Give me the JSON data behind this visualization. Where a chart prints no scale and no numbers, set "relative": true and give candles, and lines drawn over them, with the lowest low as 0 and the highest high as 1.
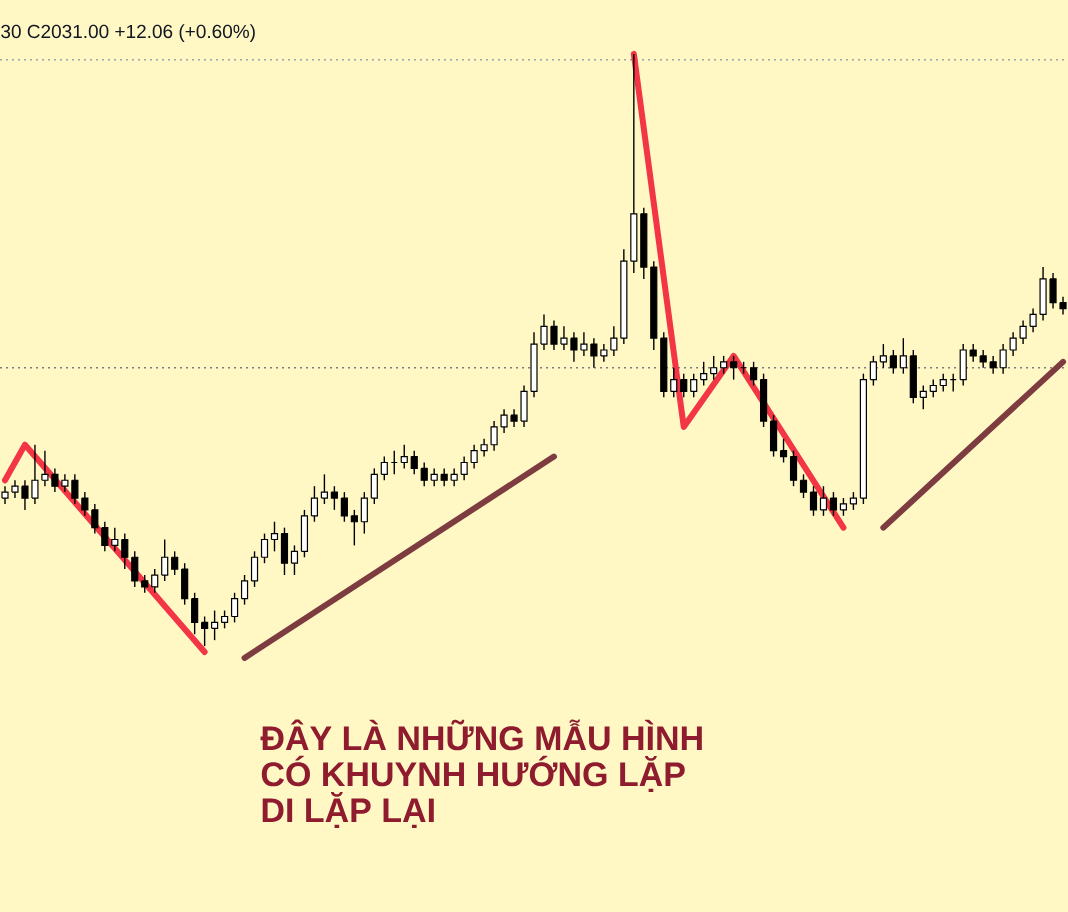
{
  "chart_data": {
    "type": "candlestick",
    "relative": true,
    "subtitle": "30 C2031.00 +12.06 (+0.60%)",
    "annotations": [
      "ĐÂY LÀ NHỮNG MẪU HÌNH",
      "CÓ KHUYNH HƯỚNG LẶP",
      "DI LẶP LẠI"
    ],
    "categories": [
      null,
      null,
      null,
      null,
      null,
      null,
      null,
      null,
      null,
      null,
      null,
      null,
      null,
      null,
      null,
      null,
      null,
      null,
      null,
      null,
      null,
      null,
      null,
      null,
      null,
      null,
      null,
      null,
      null,
      null,
      null,
      null,
      null,
      null,
      null,
      null,
      null,
      null,
      null,
      null,
      null,
      null,
      null,
      null,
      null,
      null,
      null,
      null,
      null,
      null,
      null,
      null,
      null,
      null,
      null,
      null,
      null,
      null,
      null,
      null,
      null,
      null,
      null,
      null,
      null,
      null,
      null,
      null,
      null,
      null,
      null,
      null,
      null,
      null,
      null,
      null,
      null,
      null,
      null,
      null,
      null,
      null,
      null,
      null,
      null,
      null,
      null,
      null,
      null,
      null,
      null,
      null,
      null,
      null,
      null,
      null,
      null,
      null,
      null,
      null,
      null,
      null,
      null,
      null,
      null,
      null,
      null
    ],
    "ohlc": [
      [
        0.25,
        0.27,
        0.24,
        0.26
      ],
      [
        0.26,
        0.28,
        0.25,
        0.27
      ],
      [
        0.27,
        0.28,
        0.23,
        0.25
      ],
      [
        0.25,
        0.34,
        0.24,
        0.28
      ],
      [
        0.28,
        0.33,
        0.27,
        0.29
      ],
      [
        0.29,
        0.3,
        0.26,
        0.27
      ],
      [
        0.27,
        0.29,
        0.26,
        0.28
      ],
      [
        0.28,
        0.29,
        0.24,
        0.25
      ],
      [
        0.25,
        0.26,
        0.22,
        0.23
      ],
      [
        0.23,
        0.24,
        0.19,
        0.2
      ],
      [
        0.2,
        0.21,
        0.16,
        0.17
      ],
      [
        0.17,
        0.2,
        0.16,
        0.18
      ],
      [
        0.18,
        0.19,
        0.13,
        0.15
      ],
      [
        0.15,
        0.16,
        0.1,
        0.11
      ],
      [
        0.11,
        0.12,
        0.09,
        0.1
      ],
      [
        0.1,
        0.13,
        0.09,
        0.12
      ],
      [
        0.12,
        0.18,
        0.11,
        0.15
      ],
      [
        0.15,
        0.16,
        0.12,
        0.13
      ],
      [
        0.13,
        0.14,
        0.07,
        0.08
      ],
      [
        0.08,
        0.09,
        0.02,
        0.04
      ],
      [
        0.04,
        0.05,
        0.0,
        0.03
      ],
      [
        0.03,
        0.06,
        0.01,
        0.04
      ],
      [
        0.04,
        0.06,
        0.03,
        0.05
      ],
      [
        0.05,
        0.09,
        0.04,
        0.08
      ],
      [
        0.08,
        0.12,
        0.07,
        0.11
      ],
      [
        0.11,
        0.16,
        0.1,
        0.15
      ],
      [
        0.15,
        0.19,
        0.14,
        0.18
      ],
      [
        0.18,
        0.21,
        0.16,
        0.19
      ],
      [
        0.19,
        0.2,
        0.12,
        0.14
      ],
      [
        0.14,
        0.17,
        0.12,
        0.16
      ],
      [
        0.16,
        0.23,
        0.15,
        0.22
      ],
      [
        0.22,
        0.27,
        0.21,
        0.25
      ],
      [
        0.25,
        0.29,
        0.24,
        0.26
      ],
      [
        0.26,
        0.27,
        0.23,
        0.25
      ],
      [
        0.25,
        0.26,
        0.21,
        0.22
      ],
      [
        0.22,
        0.23,
        0.17,
        0.21
      ],
      [
        0.21,
        0.26,
        0.19,
        0.25
      ],
      [
        0.25,
        0.3,
        0.24,
        0.29
      ],
      [
        0.29,
        0.32,
        0.28,
        0.31
      ],
      [
        0.31,
        0.33,
        0.29,
        0.31
      ],
      [
        0.31,
        0.34,
        0.3,
        0.32
      ],
      [
        0.32,
        0.33,
        0.29,
        0.3
      ],
      [
        0.3,
        0.31,
        0.27,
        0.28
      ],
      [
        0.28,
        0.3,
        0.27,
        0.29
      ],
      [
        0.29,
        0.3,
        0.27,
        0.28
      ],
      [
        0.28,
        0.3,
        0.27,
        0.29
      ],
      [
        0.29,
        0.32,
        0.28,
        0.31
      ],
      [
        0.31,
        0.34,
        0.3,
        0.33
      ],
      [
        0.33,
        0.35,
        0.32,
        0.34
      ],
      [
        0.34,
        0.38,
        0.33,
        0.37
      ],
      [
        0.37,
        0.4,
        0.36,
        0.39
      ],
      [
        0.39,
        0.4,
        0.37,
        0.38
      ],
      [
        0.38,
        0.44,
        0.37,
        0.43
      ],
      [
        0.43,
        0.53,
        0.42,
        0.51
      ],
      [
        0.51,
        0.56,
        0.5,
        0.54
      ],
      [
        0.54,
        0.55,
        0.5,
        0.51
      ],
      [
        0.51,
        0.54,
        0.5,
        0.52
      ],
      [
        0.52,
        0.53,
        0.48,
        0.5
      ],
      [
        0.5,
        0.53,
        0.49,
        0.51
      ],
      [
        0.51,
        0.52,
        0.47,
        0.49
      ],
      [
        0.49,
        0.51,
        0.48,
        0.5
      ],
      [
        0.5,
        0.54,
        0.49,
        0.52
      ],
      [
        0.52,
        0.67,
        0.51,
        0.65
      ],
      [
        0.65,
        1.0,
        0.63,
        0.73
      ],
      [
        0.73,
        0.74,
        0.62,
        0.64
      ],
      [
        0.64,
        0.65,
        0.5,
        0.52
      ],
      [
        0.52,
        0.53,
        0.42,
        0.43
      ],
      [
        0.43,
        0.47,
        0.42,
        0.45
      ],
      [
        0.45,
        0.46,
        0.42,
        0.43
      ],
      [
        0.43,
        0.46,
        0.42,
        0.45
      ],
      [
        0.45,
        0.48,
        0.44,
        0.46
      ],
      [
        0.46,
        0.49,
        0.45,
        0.47
      ],
      [
        0.47,
        0.49,
        0.46,
        0.48
      ],
      [
        0.48,
        0.49,
        0.45,
        0.47
      ],
      [
        0.47,
        0.48,
        0.46,
        0.47
      ],
      [
        0.47,
        0.48,
        0.44,
        0.45
      ],
      [
        0.45,
        0.46,
        0.37,
        0.38
      ],
      [
        0.38,
        0.39,
        0.32,
        0.33
      ],
      [
        0.33,
        0.35,
        0.31,
        0.32
      ],
      [
        0.32,
        0.33,
        0.27,
        0.28
      ],
      [
        0.28,
        0.29,
        0.25,
        0.26
      ],
      [
        0.26,
        0.27,
        0.22,
        0.23
      ],
      [
        0.23,
        0.27,
        0.22,
        0.25
      ],
      [
        0.25,
        0.26,
        0.22,
        0.23
      ],
      [
        0.23,
        0.25,
        0.22,
        0.24
      ],
      [
        0.24,
        0.26,
        0.23,
        0.25
      ],
      [
        0.25,
        0.46,
        0.24,
        0.45
      ],
      [
        0.45,
        0.49,
        0.44,
        0.48
      ],
      [
        0.48,
        0.51,
        0.47,
        0.49
      ],
      [
        0.49,
        0.5,
        0.46,
        0.47
      ],
      [
        0.47,
        0.52,
        0.46,
        0.49
      ],
      [
        0.49,
        0.5,
        0.41,
        0.42
      ],
      [
        0.42,
        0.44,
        0.4,
        0.43
      ],
      [
        0.43,
        0.45,
        0.42,
        0.44
      ],
      [
        0.44,
        0.46,
        0.43,
        0.45
      ],
      [
        0.45,
        0.46,
        0.43,
        0.45
      ],
      [
        0.45,
        0.51,
        0.44,
        0.5
      ],
      [
        0.5,
        0.51,
        0.48,
        0.49
      ],
      [
        0.49,
        0.5,
        0.47,
        0.48
      ],
      [
        0.48,
        0.49,
        0.46,
        0.47
      ],
      [
        0.47,
        0.51,
        0.46,
        0.5
      ],
      [
        0.5,
        0.53,
        0.49,
        0.52
      ],
      [
        0.52,
        0.55,
        0.51,
        0.54
      ],
      [
        0.54,
        0.57,
        0.53,
        0.56
      ],
      [
        0.56,
        0.64,
        0.55,
        0.62
      ],
      [
        0.62,
        0.63,
        0.57,
        0.58
      ],
      [
        0.58,
        0.59,
        0.56,
        0.57
      ]
    ],
    "colors": [
      "#ffffff",
      "#ffffff",
      "#000000",
      "#ffffff",
      "#ffffff",
      "#000000",
      "#ffffff",
      "#000000",
      "#000000",
      "#000000",
      "#000000",
      "#ffffff",
      "#000000",
      "#000000",
      "#000000",
      "#ffffff",
      "#ffffff",
      "#000000",
      "#000000",
      "#000000",
      "#000000",
      "#ffffff",
      "#ffffff",
      "#ffffff",
      "#ffffff",
      "#ffffff",
      "#ffffff",
      "#ffffff",
      "#000000",
      "#ffffff",
      "#ffffff",
      "#ffffff",
      "#ffffff",
      "#000000",
      "#000000",
      "#000000",
      "#ffffff",
      "#ffffff",
      "#ffffff",
      "#000000",
      "#ffffff",
      "#000000",
      "#000000",
      "#ffffff",
      "#000000",
      "#ffffff",
      "#ffffff",
      "#ffffff",
      "#ffffff",
      "#ffffff",
      "#ffffff",
      "#000000",
      "#ffffff",
      "#ffffff",
      "#ffffff",
      "#000000",
      "#ffffff",
      "#000000",
      "#ffffff",
      "#000000",
      "#ffffff",
      "#ffffff",
      "#ffffff",
      "#ffffff",
      "#000000",
      "#000000",
      "#000000",
      "#ffffff",
      "#000000",
      "#ffffff",
      "#ffffff",
      "#ffffff",
      "#ffffff",
      "#000000",
      "#000000",
      "#000000",
      "#000000",
      "#000000",
      "#000000",
      "#000000",
      "#000000",
      "#000000",
      "#ffffff",
      "#000000",
      "#ffffff",
      "#ffffff",
      "#ffffff",
      "#ffffff",
      "#ffffff",
      "#000000",
      "#ffffff",
      "#000000",
      "#ffffff",
      "#ffffff",
      "#ffffff",
      "#000000",
      "#ffffff",
      "#000000",
      "#000000",
      "#000000",
      "#ffffff",
      "#ffffff",
      "#ffffff",
      "#ffffff",
      "#ffffff",
      "#000000",
      "#000000"
    ],
    "series": [
      {
        "type": "line",
        "color": "#f23645",
        "values": [
          0.28,
          null,
          0.34,
          null,
          null,
          null,
          null,
          null,
          null,
          null,
          null,
          null,
          null,
          null,
          null,
          null,
          null,
          null,
          null,
          null,
          -0.01,
          null,
          null,
          null,
          null,
          null,
          null,
          null,
          null,
          null,
          null,
          null,
          null,
          null,
          null,
          null,
          null,
          null,
          null,
          null,
          null,
          null,
          null,
          null,
          null,
          null,
          null,
          null,
          null,
          null,
          null,
          null,
          null,
          null,
          null,
          null,
          null,
          null,
          null,
          null,
          null,
          null,
          null,
          null,
          null,
          null,
          null,
          null,
          null,
          null,
          null,
          null,
          null,
          null,
          null,
          null,
          null,
          null,
          null,
          null,
          null,
          null,
          null,
          null,
          null,
          null,
          null,
          null,
          null,
          null,
          null,
          null,
          null,
          null,
          null,
          null,
          null,
          null,
          null,
          null,
          null,
          null,
          null,
          null,
          null,
          null,
          null
        ]
      },
      {
        "type": "line",
        "color": "#f23645",
        "values": [
          null,
          null,
          null,
          null,
          null,
          null,
          null,
          null,
          null,
          null,
          null,
          null,
          null,
          null,
          null,
          null,
          null,
          null,
          null,
          null,
          null,
          null,
          null,
          null,
          null,
          null,
          null,
          null,
          null,
          null,
          null,
          null,
          null,
          null,
          null,
          null,
          null,
          null,
          null,
          null,
          null,
          null,
          null,
          null,
          null,
          null,
          null,
          null,
          null,
          null,
          null,
          null,
          null,
          null,
          null,
          null,
          null,
          null,
          null,
          null,
          null,
          null,
          null,
          1.0,
          null,
          null,
          null,
          null,
          0.37,
          null,
          null,
          null,
          null,
          0.49,
          null,
          null,
          null,
          null,
          null,
          null,
          null,
          null,
          null,
          null,
          0.2,
          null,
          null,
          null,
          null,
          null,
          null,
          null,
          null,
          null,
          null,
          null,
          null,
          null,
          null,
          null,
          null,
          null,
          null,
          null,
          null,
          null,
          null
        ]
      },
      {
        "type": "line",
        "color": "#7d3c40",
        "values": [
          null,
          null,
          null,
          null,
          null,
          null,
          null,
          null,
          null,
          null,
          null,
          null,
          null,
          null,
          null,
          null,
          null,
          null,
          null,
          null,
          null,
          null,
          null,
          null,
          -0.02,
          null,
          null,
          null,
          null,
          null,
          null,
          null,
          null,
          null,
          null,
          null,
          null,
          null,
          null,
          null,
          null,
          null,
          null,
          null,
          null,
          null,
          null,
          null,
          null,
          null,
          null,
          null,
          null,
          null,
          null,
          0.32,
          null,
          null,
          null,
          null,
          null,
          null,
          null,
          null,
          null,
          null,
          null,
          null,
          null,
          null,
          null,
          null,
          null,
          null,
          null,
          null,
          null,
          null,
          null,
          null,
          null,
          null,
          null,
          null,
          null,
          null,
          null,
          null,
          null,
          null,
          null,
          null,
          null,
          null,
          null,
          null,
          null,
          null,
          null,
          null,
          null,
          null,
          null,
          null,
          null,
          null,
          null
        ]
      },
      {
        "type": "line",
        "color": "#7d3c40",
        "values": [
          null,
          null,
          null,
          null,
          null,
          null,
          null,
          null,
          null,
          null,
          null,
          null,
          null,
          null,
          null,
          null,
          null,
          null,
          null,
          null,
          null,
          null,
          null,
          null,
          null,
          null,
          null,
          null,
          null,
          null,
          null,
          null,
          null,
          null,
          null,
          null,
          null,
          null,
          null,
          null,
          null,
          null,
          null,
          null,
          null,
          null,
          null,
          null,
          null,
          null,
          null,
          null,
          null,
          null,
          null,
          null,
          null,
          null,
          null,
          null,
          null,
          null,
          null,
          null,
          null,
          null,
          null,
          null,
          null,
          null,
          null,
          null,
          null,
          null,
          null,
          null,
          null,
          null,
          null,
          null,
          null,
          null,
          null,
          null,
          null,
          null,
          null,
          null,
          0.2,
          null,
          null,
          null,
          null,
          null,
          null,
          null,
          null,
          null,
          null,
          null,
          null,
          null,
          null,
          null,
          null,
          null,
          0.48
        ]
      }
    ],
    "ref_lines": [
      {
        "axis": "y",
        "value": 0.99,
        "color": "#a0a3ab",
        "line_style": "dotted"
      },
      {
        "axis": "y",
        "value": 0.47,
        "color": "#7a7d85",
        "line_style": "dotted"
      }
    ]
  }
}
